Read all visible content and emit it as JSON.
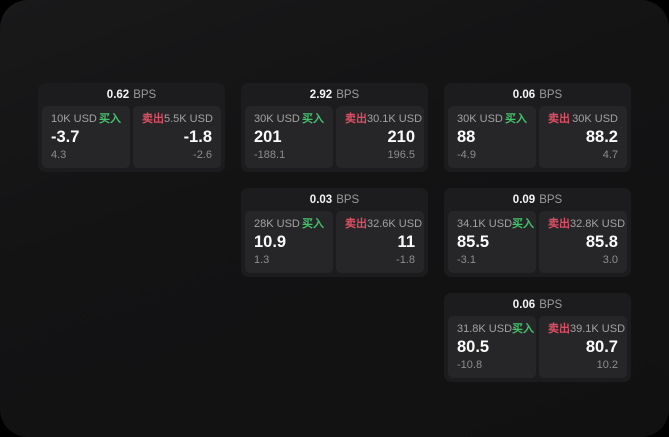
{
  "labels": {
    "bps_suffix": "BPS",
    "buy": "买入",
    "sell": "卖出"
  },
  "colors": {
    "buy_green": "#45c06c",
    "sell_red": "#da4f63",
    "surface": "#131314",
    "card": "#1c1c1e",
    "tile": "#262628"
  },
  "cards": [
    {
      "bps": "0.62",
      "buy": {
        "amount": "10K USD",
        "value": "-3.7",
        "sub": "4.3"
      },
      "sell": {
        "amount": "5.5K USD",
        "value": "-1.8",
        "sub": "-2.6"
      }
    },
    {
      "bps": "2.92",
      "buy": {
        "amount": "30K USD",
        "value": "201",
        "sub": "-188.1"
      },
      "sell": {
        "amount": "30.1K USD",
        "value": "210",
        "sub": "196.5"
      }
    },
    {
      "bps": "0.06",
      "buy": {
        "amount": "30K USD",
        "value": "88",
        "sub": "-4.9"
      },
      "sell": {
        "amount": "30K USD",
        "value": "88.2",
        "sub": "4.7"
      }
    },
    {
      "bps": "0.03",
      "buy": {
        "amount": "28K USD",
        "value": "10.9",
        "sub": "1.3"
      },
      "sell": {
        "amount": "32.6K USD",
        "value": "11",
        "sub": "-1.8"
      }
    },
    {
      "bps": "0.09",
      "buy": {
        "amount": "34.1K USD",
        "value": "85.5",
        "sub": "-3.1"
      },
      "sell": {
        "amount": "32.8K USD",
        "value": "85.8",
        "sub": "3.0"
      }
    },
    {
      "bps": "0.06",
      "buy": {
        "amount": "31.8K USD",
        "value": "80.5",
        "sub": "-10.8"
      },
      "sell": {
        "amount": "39.1K USD",
        "value": "80.7",
        "sub": "10.2"
      }
    }
  ]
}
